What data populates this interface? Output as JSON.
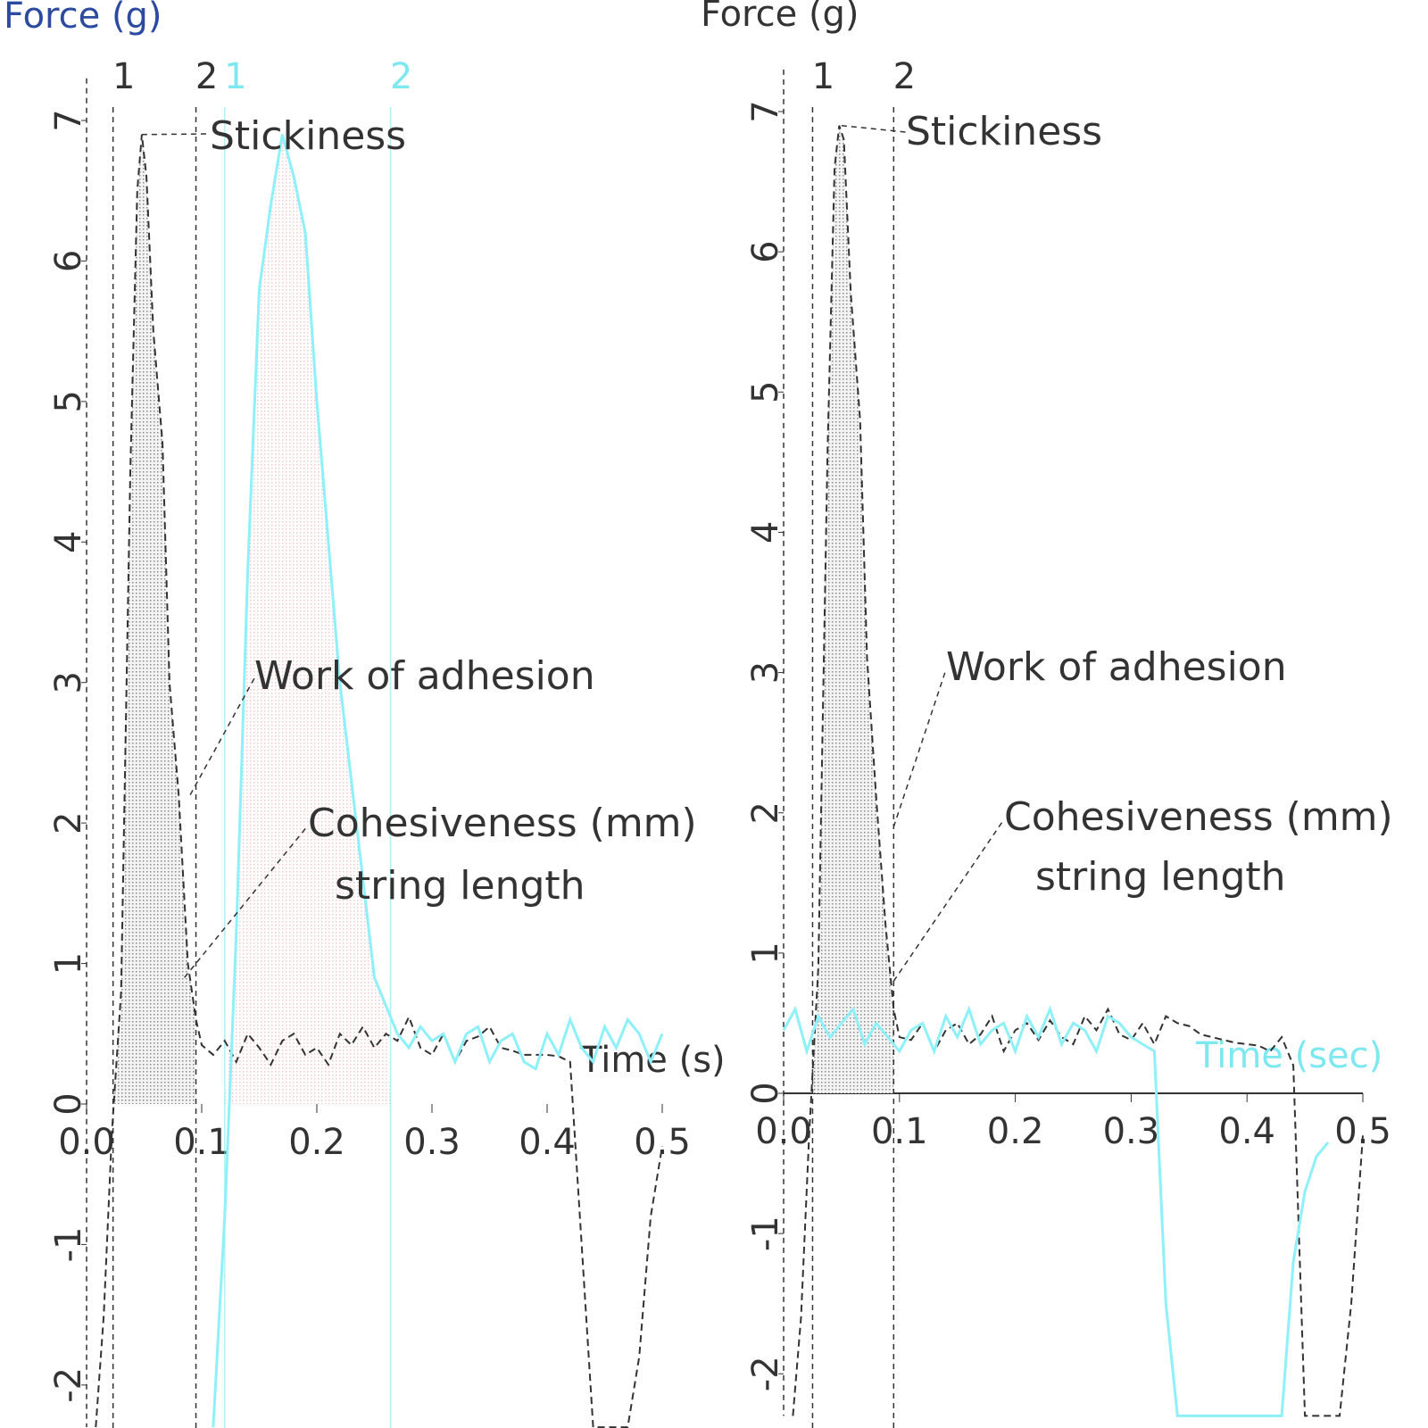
{
  "chart_data": [
    {
      "type": "line",
      "y_label": "Force (g)",
      "x_label": "Time (s)",
      "xlim": [
        0,
        0.5
      ],
      "ylim": [
        -2.3,
        7.3
      ],
      "xticks": [
        {
          "value": 0,
          "label": "0.0"
        },
        0.1,
        0.2,
        0.3,
        0.4,
        0.5
      ],
      "yticks": [
        -2,
        -1,
        0,
        1,
        2,
        3,
        4,
        5,
        6,
        7
      ],
      "x_axis_line": false,
      "markers": [
        {
          "x": 0.023,
          "label": "1",
          "color": "#333333"
        },
        {
          "x": 0.095,
          "label": "2",
          "color": "#333333"
        },
        {
          "x": 0.12,
          "label": "1",
          "color": "#7ee8f0"
        },
        {
          "x": 0.264,
          "label": "2",
          "color": "#7ee8f0"
        }
      ],
      "annotations": [
        "Stickiness",
        "Work of adhesion",
        "Cohesiveness (mm)",
        "string length"
      ],
      "series": [
        {
          "color": "#333333",
          "dash": true,
          "x": [
            0.008,
            0.015,
            0.022,
            0.03,
            0.038,
            0.044,
            0.048,
            0.052,
            0.058,
            0.066,
            0.072,
            0.08,
            0.088,
            0.095,
            0.1,
            0.11,
            0.12,
            0.13,
            0.14,
            0.15,
            0.16,
            0.17,
            0.18,
            0.19,
            0.2,
            0.21,
            0.22,
            0.23,
            0.24,
            0.25,
            0.26,
            0.27,
            0.28,
            0.29,
            0.3,
            0.31,
            0.32,
            0.33,
            0.34,
            0.35,
            0.36,
            0.37,
            0.38,
            0.39,
            0.4,
            0.41,
            0.42,
            0.43,
            0.44,
            0.45,
            0.46,
            0.47,
            0.48,
            0.49,
            0.5
          ],
          "values": [
            -2.3,
            -1.5,
            -0.2,
            0.8,
            4.5,
            6.5,
            6.9,
            6.6,
            5.5,
            4.7,
            3.0,
            2.2,
            1.0,
            0.6,
            0.42,
            0.35,
            0.45,
            0.3,
            0.5,
            0.4,
            0.28,
            0.45,
            0.5,
            0.35,
            0.4,
            0.28,
            0.5,
            0.42,
            0.55,
            0.4,
            0.5,
            0.45,
            0.62,
            0.4,
            0.35,
            0.5,
            0.3,
            0.45,
            0.48,
            0.55,
            0.4,
            0.38,
            0.35,
            0.35,
            0.35,
            0.34,
            0.3,
            -1.0,
            -2.3,
            -2.3,
            -2.3,
            -2.3,
            -1.8,
            -0.8,
            -0.3
          ]
        },
        {
          "color": "#8ef0f8",
          "dash": false,
          "x": [
            0.11,
            0.12,
            0.13,
            0.14,
            0.15,
            0.16,
            0.17,
            0.18,
            0.19,
            0.2,
            0.21,
            0.22,
            0.23,
            0.24,
            0.25,
            0.26,
            0.27,
            0.28,
            0.29,
            0.3,
            0.31,
            0.32,
            0.33,
            0.34,
            0.35,
            0.36,
            0.37,
            0.38,
            0.39,
            0.4,
            0.41,
            0.42,
            0.43,
            0.44,
            0.45,
            0.46,
            0.47,
            0.48,
            0.49,
            0.5
          ],
          "values": [
            -2.3,
            -0.8,
            1.2,
            3.8,
            5.8,
            6.4,
            6.9,
            6.6,
            6.2,
            5.0,
            4.0,
            3.0,
            2.3,
            1.6,
            0.9,
            0.7,
            0.5,
            0.4,
            0.55,
            0.45,
            0.5,
            0.3,
            0.5,
            0.55,
            0.3,
            0.45,
            0.5,
            0.3,
            0.25,
            0.5,
            0.35,
            0.6,
            0.4,
            0.3,
            0.55,
            0.4,
            0.6,
            0.5,
            0.3,
            0.5
          ]
        }
      ]
    },
    {
      "type": "line",
      "y_label": "Force (g)",
      "x_label": "Time (sec)",
      "xlim": [
        0,
        0.5
      ],
      "ylim": [
        -2.3,
        7.3
      ],
      "xticks": [
        {
          "value": 0,
          "label": "0.0"
        },
        0.1,
        0.2,
        0.3,
        0.4,
        0.5
      ],
      "yticks": [
        -2,
        -1,
        0,
        1,
        2,
        3,
        4,
        5,
        6,
        7
      ],
      "x_axis_line": true,
      "markers": [
        {
          "x": 0.025,
          "label": "1",
          "color": "#333333"
        },
        {
          "x": 0.095,
          "label": "2",
          "color": "#333333"
        }
      ],
      "annotations": [
        "Stickiness",
        "Work of adhesion",
        "Cohesiveness (mm)",
        "string length"
      ],
      "series": [
        {
          "color": "#333333",
          "dash": true,
          "x": [
            0.008,
            0.015,
            0.022,
            0.03,
            0.038,
            0.044,
            0.048,
            0.052,
            0.058,
            0.066,
            0.072,
            0.08,
            0.088,
            0.095,
            0.1,
            0.11,
            0.12,
            0.13,
            0.14,
            0.15,
            0.16,
            0.17,
            0.18,
            0.19,
            0.2,
            0.21,
            0.22,
            0.23,
            0.24,
            0.25,
            0.26,
            0.27,
            0.28,
            0.29,
            0.3,
            0.31,
            0.32,
            0.33,
            0.34,
            0.35,
            0.36,
            0.37,
            0.38,
            0.39,
            0.4,
            0.41,
            0.42,
            0.43,
            0.44,
            0.45,
            0.46,
            0.47,
            0.48,
            0.49,
            0.5
          ],
          "values": [
            -2.3,
            -1.6,
            -0.3,
            0.9,
            4.6,
            6.6,
            6.9,
            6.8,
            5.7,
            4.8,
            3.1,
            2.1,
            1.2,
            0.6,
            0.4,
            0.38,
            0.5,
            0.3,
            0.45,
            0.5,
            0.35,
            0.42,
            0.55,
            0.3,
            0.45,
            0.5,
            0.38,
            0.52,
            0.4,
            0.35,
            0.55,
            0.45,
            0.6,
            0.42,
            0.38,
            0.5,
            0.35,
            0.55,
            0.5,
            0.48,
            0.42,
            0.4,
            0.38,
            0.36,
            0.35,
            0.34,
            0.3,
            0.4,
            0.2,
            -2.3,
            -2.3,
            -2.3,
            -2.3,
            -1.5,
            -0.3
          ]
        },
        {
          "color": "#8ef0f8",
          "dash": false,
          "x": [
            0,
            0.01,
            0.02,
            0.03,
            0.04,
            0.05,
            0.06,
            0.07,
            0.08,
            0.09,
            0.1,
            0.11,
            0.12,
            0.13,
            0.14,
            0.15,
            0.16,
            0.17,
            0.18,
            0.19,
            0.2,
            0.21,
            0.22,
            0.23,
            0.24,
            0.25,
            0.26,
            0.27,
            0.28,
            0.29,
            0.3,
            0.31,
            0.32,
            0.33,
            0.34,
            0.35,
            0.36,
            0.37,
            0.38,
            0.39,
            0.4,
            0.41,
            0.42,
            0.43,
            0.44,
            0.45,
            0.46,
            0.47
          ],
          "values": [
            0.45,
            0.6,
            0.3,
            0.55,
            0.4,
            0.5,
            0.6,
            0.35,
            0.5,
            0.4,
            0.3,
            0.45,
            0.5,
            0.3,
            0.55,
            0.4,
            0.6,
            0.35,
            0.45,
            0.5,
            0.3,
            0.55,
            0.4,
            0.6,
            0.35,
            0.5,
            0.45,
            0.3,
            0.55,
            0.5,
            0.4,
            0.35,
            0.3,
            -1.5,
            -2.3,
            -2.3,
            -2.3,
            -2.3,
            -2.3,
            -2.3,
            -2.3,
            -2.3,
            -2.3,
            -2.3,
            -1.2,
            -0.7,
            -0.45,
            -0.35
          ]
        }
      ]
    }
  ]
}
